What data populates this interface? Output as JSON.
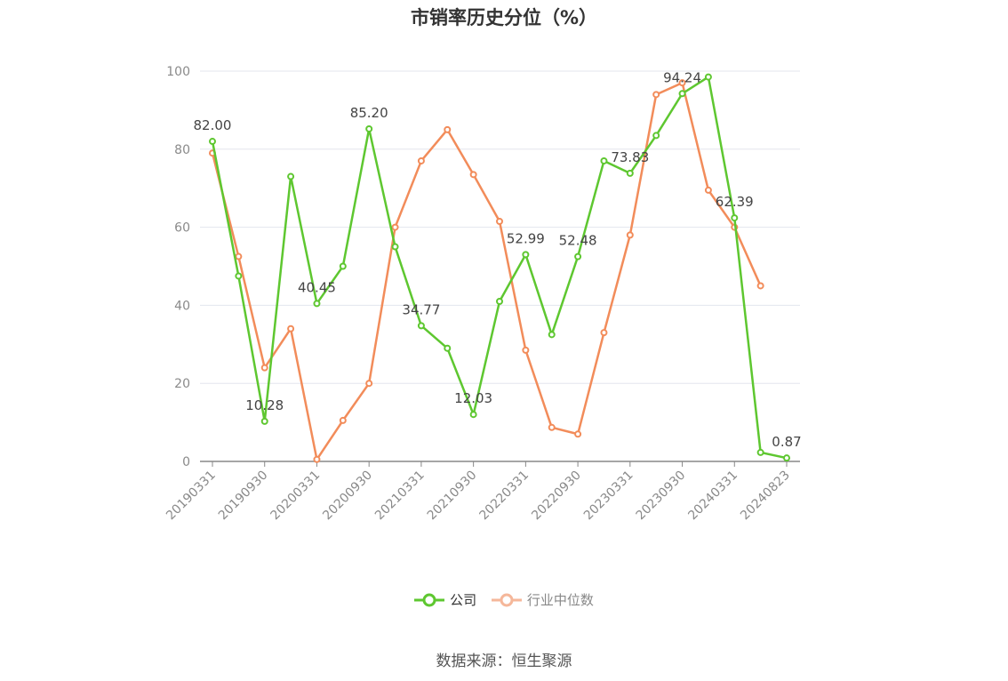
{
  "chart_data": {
    "type": "line",
    "title": "市销率历史分位（%）",
    "xlabel": "",
    "ylabel": "",
    "ylim": [
      0,
      100
    ],
    "yticks": [
      0,
      20,
      40,
      60,
      80,
      100
    ],
    "grid": "horizontal",
    "legend_position": "bottom-center",
    "x_tick_labels": [
      "20190331",
      "20190930",
      "20200331",
      "20200930",
      "20210331",
      "20210930",
      "20220331",
      "20220930",
      "20230331",
      "20230930",
      "20240331",
      "20240823"
    ],
    "x": [
      "20190331",
      "20190630",
      "20190930",
      "20191231",
      "20200331",
      "20200630",
      "20200930",
      "20201231",
      "20210331",
      "20210630",
      "20210930",
      "20211231",
      "20220331",
      "20220630",
      "20220930",
      "20221231",
      "20230331",
      "20230630",
      "20230930",
      "20231231",
      "20240331",
      "20240630",
      "20240823"
    ],
    "series": [
      {
        "name": "公司",
        "color": "#5ec730",
        "values": [
          82.0,
          47.5,
          10.28,
          73.0,
          40.45,
          50.0,
          85.2,
          55.0,
          34.77,
          29.0,
          12.03,
          41.0,
          52.99,
          32.5,
          52.48,
          77.0,
          73.83,
          83.5,
          94.24,
          98.5,
          62.39,
          2.3,
          0.87
        ],
        "labels": {
          "0": "82.00",
          "2": "10.28",
          "4": "40.45",
          "6": "85.20",
          "8": "34.77",
          "10": "12.03",
          "12": "52.99",
          "14": "52.48",
          "16": "73.83",
          "18": "94.24",
          "20": "62.39",
          "22": "0.87"
        }
      },
      {
        "name": "行业中位数",
        "color": "#f28c5a",
        "values": [
          79.0,
          52.5,
          24.0,
          34.0,
          0.5,
          10.5,
          20.0,
          60.0,
          77.0,
          85.0,
          73.5,
          61.5,
          28.5,
          8.7,
          7.0,
          33.0,
          58.0,
          94.0,
          97.0,
          69.5,
          60.0,
          45.0,
          null
        ]
      }
    ]
  },
  "legend": {
    "items": [
      {
        "label": "公司",
        "color": "#5ec730",
        "text_color": "#333333"
      },
      {
        "label": "行业中位数",
        "color": "#f5b79a",
        "text_color": "#888888"
      }
    ]
  },
  "source": "数据来源：恒生聚源"
}
